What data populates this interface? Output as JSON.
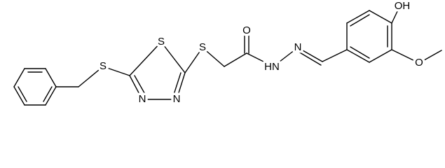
{
  "atoms": [
    {
      "label": "S"
    },
    {
      "label": "S"
    },
    {
      "label": "N"
    },
    {
      "label": "N"
    },
    {
      "label": "S"
    },
    {
      "label": "O"
    },
    {
      "label": "HN"
    },
    {
      "label": "N"
    },
    {
      "label": "OH"
    },
    {
      "label": "O"
    }
  ]
}
